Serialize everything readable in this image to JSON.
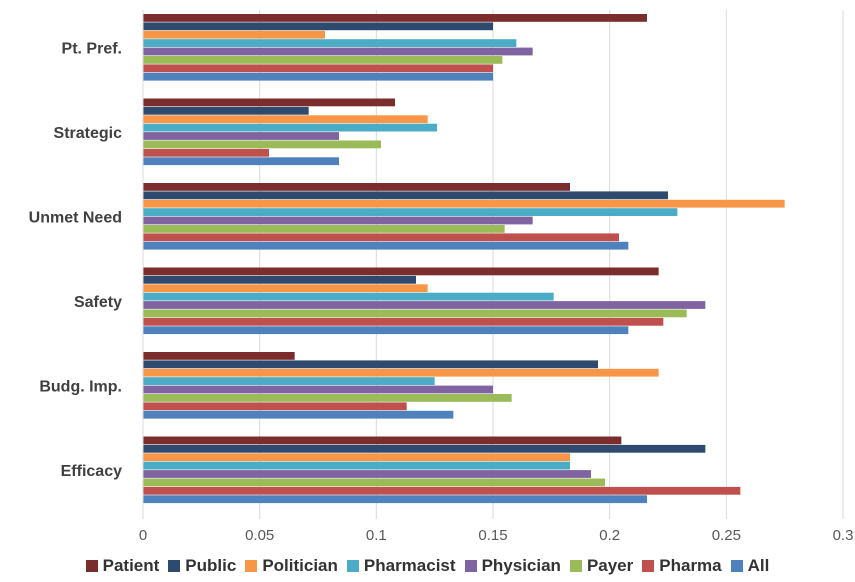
{
  "chart_data": {
    "type": "bar",
    "orientation": "horizontal",
    "categories": [
      "Pt. Pref.",
      "Strategic",
      "Unmet Need",
      "Safety",
      "Budg. Imp.",
      "Efficacy"
    ],
    "xlim": [
      0,
      0.3
    ],
    "xticks": [
      0,
      0.05,
      0.1,
      0.15,
      0.2,
      0.25,
      0.3
    ],
    "xtick_labels": [
      "0",
      "0.05",
      "0.1",
      "0.15",
      "0.2",
      "0.25",
      "0.3"
    ],
    "grid": "vertical",
    "legend_position": "bottom",
    "series": [
      {
        "name": "Patient",
        "color": "#7B2C2C",
        "values": [
          0.216,
          0.108,
          0.183,
          0.221,
          0.065,
          0.205
        ]
      },
      {
        "name": "Public",
        "color": "#2E4A6E",
        "values": [
          0.15,
          0.071,
          0.225,
          0.117,
          0.195,
          0.241
        ]
      },
      {
        "name": "Politician",
        "color": "#F79646",
        "values": [
          0.078,
          0.122,
          0.275,
          0.122,
          0.221,
          0.183
        ]
      },
      {
        "name": "Pharmacist",
        "color": "#4BACC6",
        "values": [
          0.16,
          0.126,
          0.229,
          0.176,
          0.125,
          0.183
        ]
      },
      {
        "name": "Physician",
        "color": "#8064A2",
        "values": [
          0.167,
          0.084,
          0.167,
          0.241,
          0.15,
          0.192
        ]
      },
      {
        "name": "Payer",
        "color": "#9BBB59",
        "values": [
          0.154,
          0.102,
          0.155,
          0.233,
          0.158,
          0.198
        ]
      },
      {
        "name": "Pharma",
        "color": "#C0504D",
        "values": [
          0.15,
          0.054,
          0.204,
          0.223,
          0.113,
          0.256
        ]
      },
      {
        "name": "All",
        "color": "#4F81BD",
        "values": [
          0.15,
          0.084,
          0.208,
          0.208,
          0.133,
          0.216
        ]
      }
    ]
  }
}
